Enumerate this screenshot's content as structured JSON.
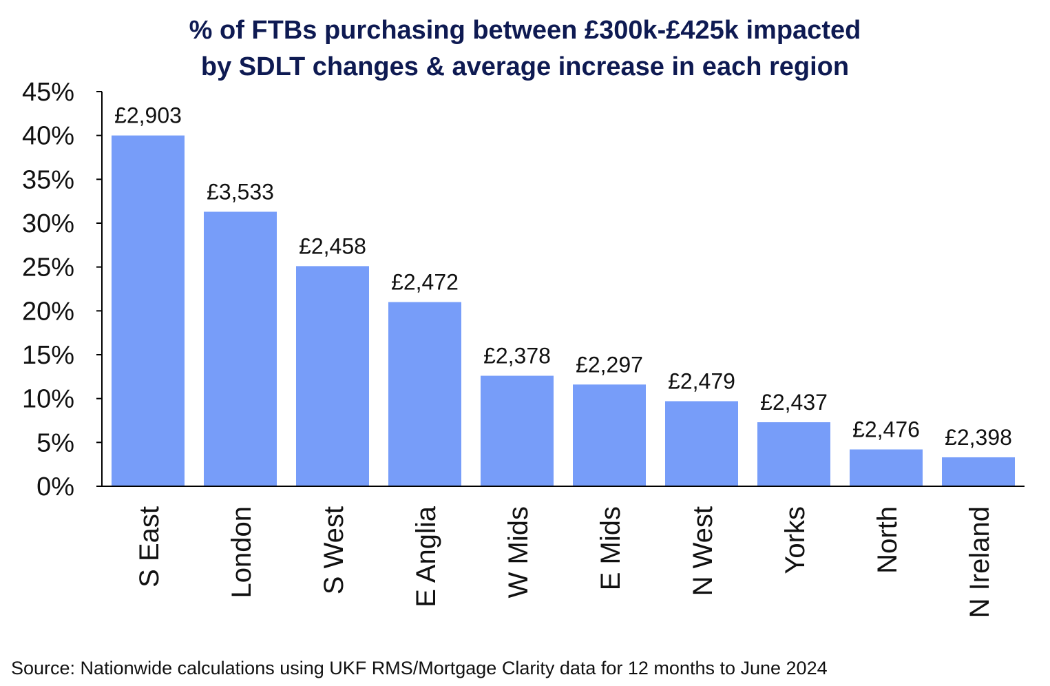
{
  "chart_data": {
    "type": "bar",
    "title": [
      "% of FTBs purchasing between £300k-£425k impacted",
      "by SDLT changes & average increase in each region"
    ],
    "xlabel": "",
    "ylabel": "",
    "ylim": [
      0,
      45
    ],
    "yticks": [
      "0%",
      "5%",
      "10%",
      "15%",
      "20%",
      "25%",
      "30%",
      "35%",
      "40%",
      "45%"
    ],
    "categories": [
      "S East",
      "London",
      "S West",
      "E Anglia",
      "W Mids",
      "E Mids",
      "N West",
      "Yorks",
      "North",
      "N Ireland"
    ],
    "values": [
      40,
      31.3,
      25.1,
      21,
      12.6,
      11.6,
      9.7,
      7.3,
      4.2,
      3.3
    ],
    "data_labels": [
      "£2,903",
      "£3,533",
      "£2,458",
      "£2,472",
      "£2,378",
      "£2,297",
      "£2,479",
      "£2,437",
      "£2,476",
      "£2,398"
    ],
    "grid": false,
    "legend": "none",
    "colors": {
      "bar": "#779df9",
      "title": "#0e1a52",
      "axis": "#000000",
      "text": "#111111"
    }
  },
  "source": "Source: Nationwide calculations using UKF RMS/Mortgage Clarity data for 12 months to June 2024"
}
